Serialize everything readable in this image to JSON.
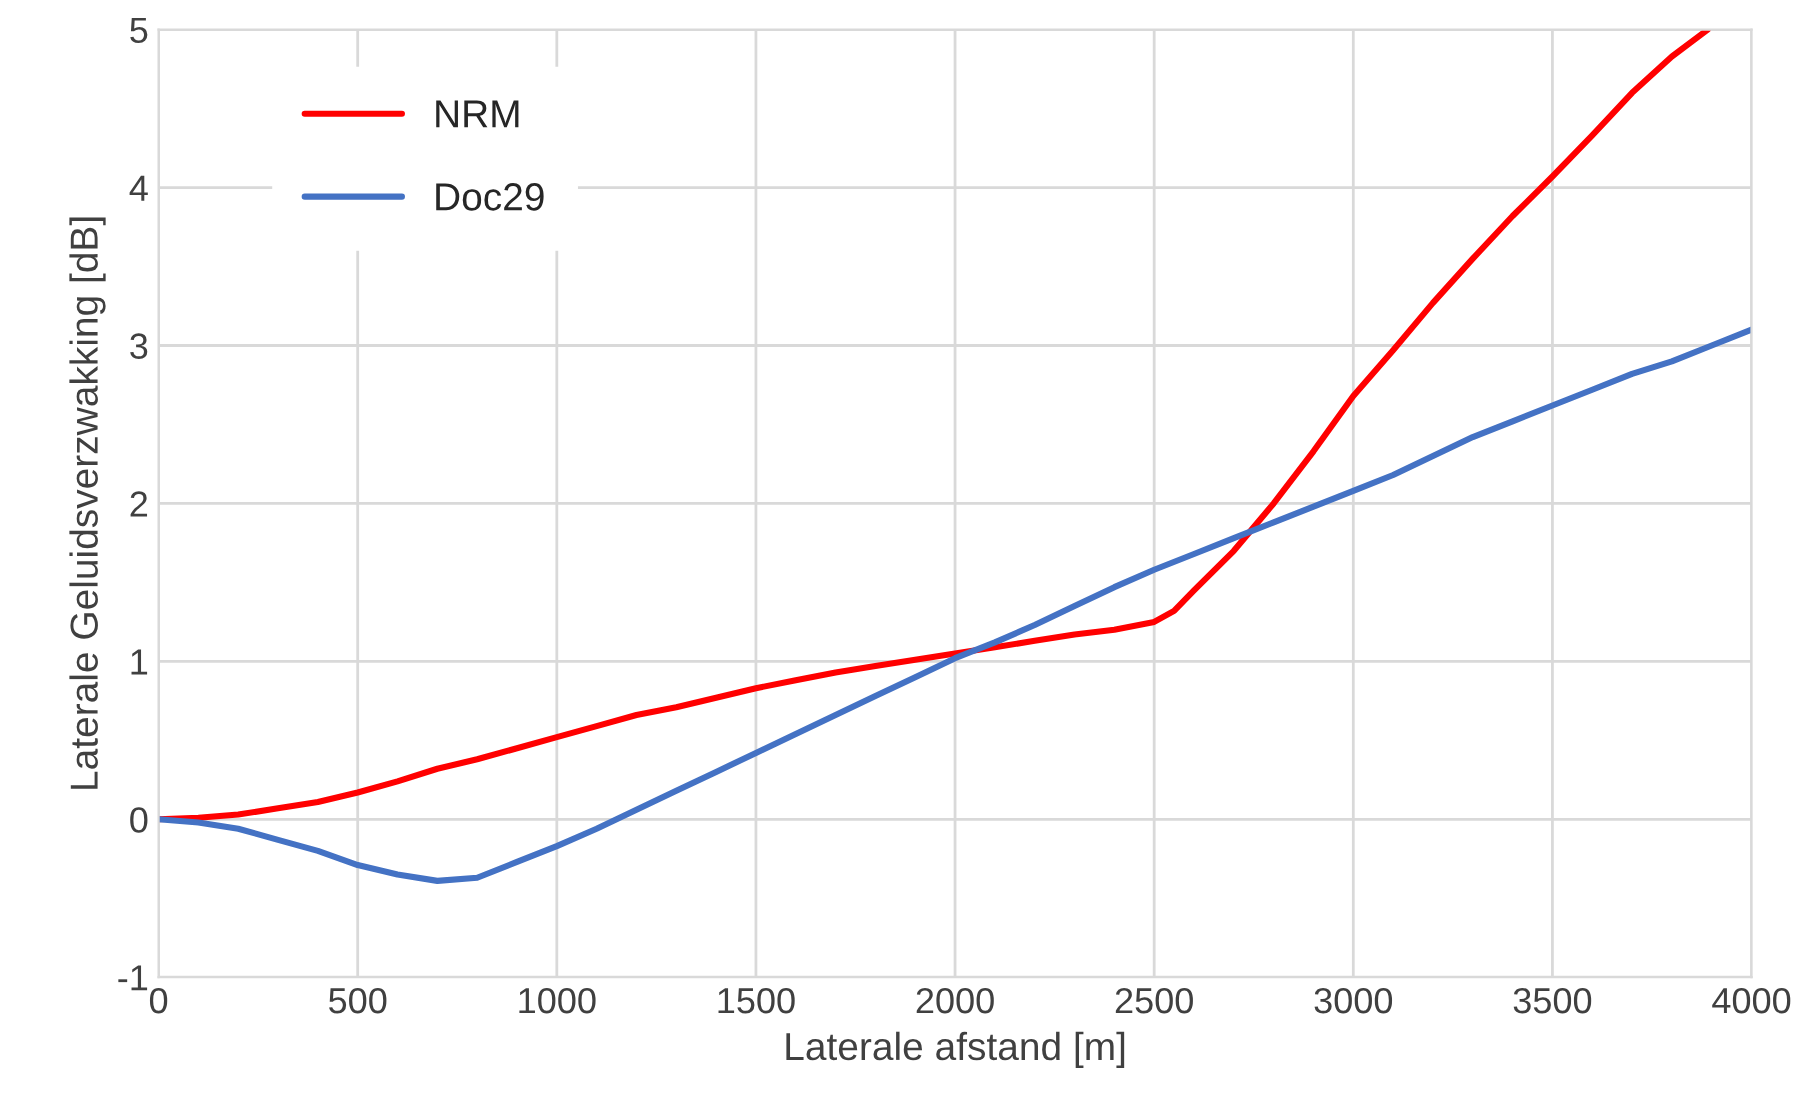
{
  "chart_data": {
    "type": "line",
    "xlabel": "Laterale afstand [m]",
    "ylabel": "Laterale Geluidsverzwakking [dB]",
    "xlim": [
      0,
      4000
    ],
    "xticks": [
      0,
      500,
      1000,
      1500,
      2000,
      2500,
      3000,
      3500,
      4000
    ],
    "ylim": [
      -1,
      5
    ],
    "yticks": [
      -1,
      0,
      1,
      2,
      3,
      4,
      5
    ],
    "grid": true,
    "legend": "top left",
    "marker": "none",
    "line_style": "solid",
    "series": [
      {
        "name": "NRM",
        "color": "#ff0000",
        "x": [
          0,
          100,
          200,
          300,
          400,
          500,
          600,
          700,
          800,
          900,
          1000,
          1100,
          1200,
          1300,
          1400,
          1500,
          1600,
          1700,
          1800,
          1900,
          2000,
          2100,
          2200,
          2300,
          2400,
          2500,
          2550,
          2600,
          2700,
          2800,
          2900,
          3000,
          3100,
          3200,
          3300,
          3400,
          3500,
          3600,
          3700,
          3800,
          3890
        ],
        "values": [
          0,
          0.01,
          0.03,
          0.07,
          0.11,
          0.17,
          0.24,
          0.32,
          0.38,
          0.45,
          0.52,
          0.59,
          0.66,
          0.71,
          0.77,
          0.83,
          0.88,
          0.93,
          0.97,
          1.01,
          1.05,
          1.09,
          1.13,
          1.17,
          1.2,
          1.25,
          1.32,
          1.45,
          1.7,
          2.0,
          2.33,
          2.68,
          2.97,
          3.27,
          3.55,
          3.82,
          4.07,
          4.33,
          4.6,
          4.83,
          5.0
        ]
      },
      {
        "name": "Doc29",
        "color": "#4472c4",
        "x": [
          0,
          100,
          200,
          300,
          400,
          500,
          600,
          700,
          800,
          900,
          1000,
          1100,
          1200,
          1300,
          1400,
          1500,
          1600,
          1700,
          1800,
          1900,
          2000,
          2100,
          2200,
          2300,
          2400,
          2500,
          2600,
          2700,
          2800,
          2900,
          3000,
          3100,
          3200,
          3300,
          3400,
          3500,
          3600,
          3700,
          3800,
          3900,
          4000
        ],
        "values": [
          0,
          -0.02,
          -0.06,
          -0.13,
          -0.2,
          -0.29,
          -0.35,
          -0.39,
          -0.37,
          -0.27,
          -0.17,
          -0.06,
          0.06,
          0.18,
          0.3,
          0.42,
          0.54,
          0.66,
          0.78,
          0.9,
          1.02,
          1.12,
          1.23,
          1.35,
          1.47,
          1.58,
          1.68,
          1.78,
          1.88,
          1.98,
          2.08,
          2.18,
          2.3,
          2.42,
          2.52,
          2.62,
          2.72,
          2.82,
          2.9,
          3.0,
          3.1
        ]
      }
    ]
  }
}
